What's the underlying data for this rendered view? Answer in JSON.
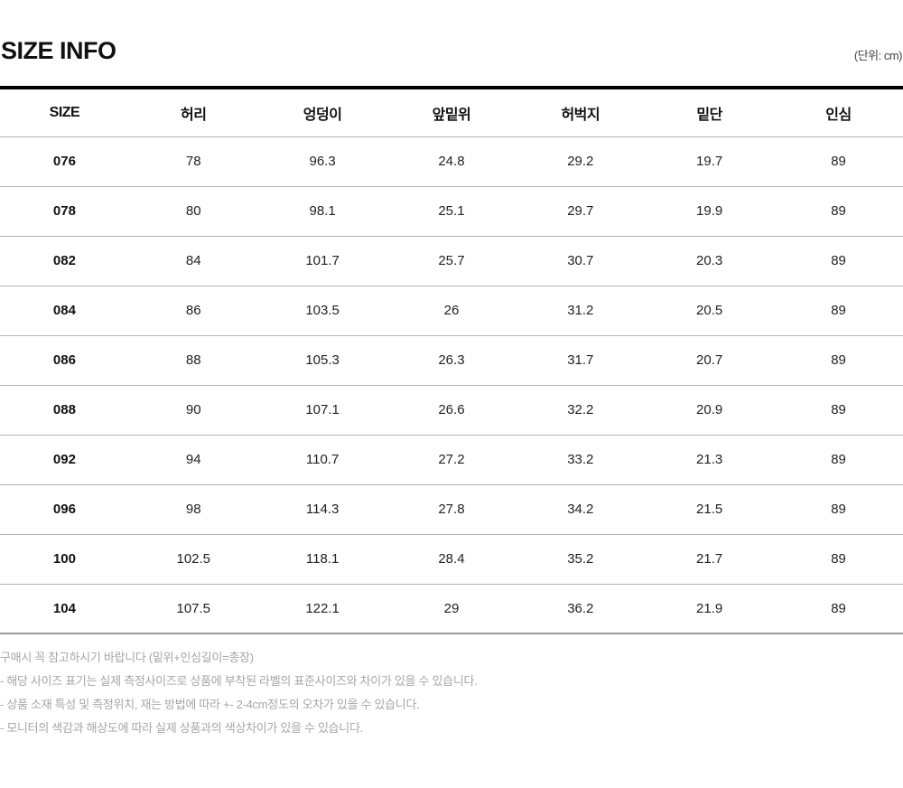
{
  "header": {
    "title": "SIZE INFO",
    "unit_label": "(단위: cm)"
  },
  "table": {
    "columns": [
      "SIZE",
      "허리",
      "엉덩이",
      "앞밑위",
      "허벅지",
      "밑단",
      "인심"
    ],
    "rows": [
      [
        "076",
        "78",
        "96.3",
        "24.8",
        "29.2",
        "19.7",
        "89"
      ],
      [
        "078",
        "80",
        "98.1",
        "25.1",
        "29.7",
        "19.9",
        "89"
      ],
      [
        "082",
        "84",
        "101.7",
        "25.7",
        "30.7",
        "20.3",
        "89"
      ],
      [
        "084",
        "86",
        "103.5",
        "26",
        "31.2",
        "20.5",
        "89"
      ],
      [
        "086",
        "88",
        "105.3",
        "26.3",
        "31.7",
        "20.7",
        "89"
      ],
      [
        "088",
        "90",
        "107.1",
        "26.6",
        "32.2",
        "20.9",
        "89"
      ],
      [
        "092",
        "94",
        "110.7",
        "27.2",
        "33.2",
        "21.3",
        "89"
      ],
      [
        "096",
        "98",
        "114.3",
        "27.8",
        "34.2",
        "21.5",
        "89"
      ],
      [
        "100",
        "102.5",
        "118.1",
        "28.4",
        "35.2",
        "21.7",
        "89"
      ],
      [
        "104",
        "107.5",
        "122.1",
        "29",
        "36.2",
        "21.9",
        "89"
      ]
    ]
  },
  "notes": [
    "구매시 꼭 참고하시기 바랍니다 (밑위+인심길이=총장)",
    "- 해당 사이즈 표기는 실제 측정사이즈로 상품에 부착된 라벨의 표준사이즈와 차이가 있을 수 있습니다.",
    "- 상품 소재 특성 및 측정위치, 재는 방법에 따라 +- 2-4cm정도의 오차가 있을 수 있습니다.",
    "- 모니터의 색감과 해상도에 따라 실제 상품과의 색상차이가 있을 수 있습니다."
  ],
  "colors": {
    "top_bar": "#000000",
    "row_divider": "#b3b3b3",
    "bottom_border": "#999999",
    "note_text": "#a6a6a6",
    "heading_text": "#111111"
  }
}
